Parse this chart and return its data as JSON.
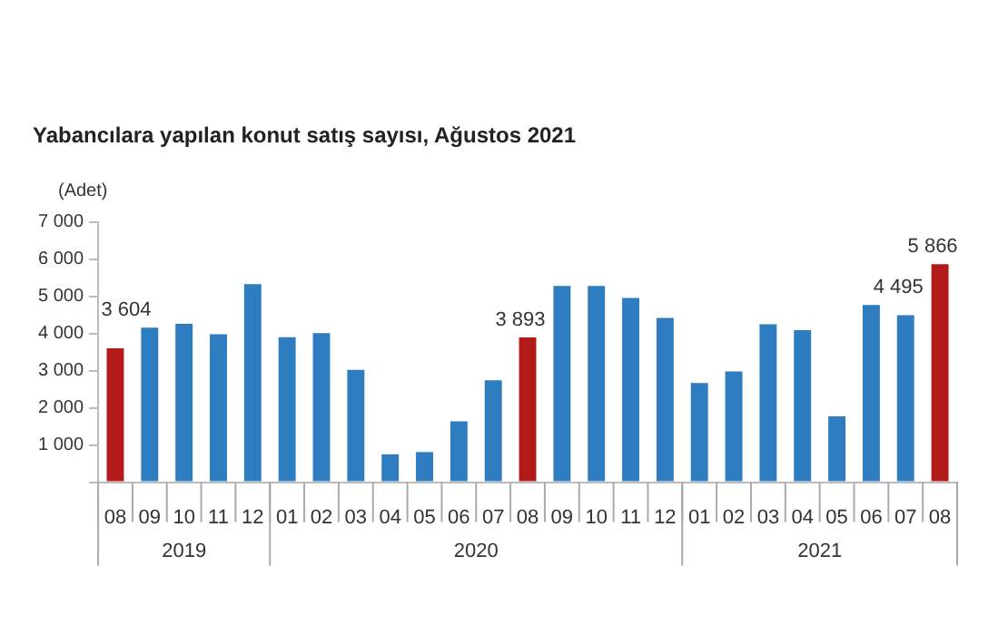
{
  "chart_data": {
    "type": "bar",
    "title": "Yabancılara yapılan konut satış sayısı, Ağustos 2021",
    "categories": [
      "08",
      "09",
      "10",
      "11",
      "12",
      "01",
      "02",
      "03",
      "04",
      "05",
      "06",
      "07",
      "08",
      "09",
      "10",
      "11",
      "12",
      "01",
      "02",
      "03",
      "04",
      "05",
      "06",
      "07",
      "08"
    ],
    "values": [
      3604,
      4160,
      4260,
      3980,
      5330,
      3900,
      4010,
      3020,
      750,
      810,
      1640,
      2740,
      3893,
      5280,
      5280,
      4960,
      4420,
      2670,
      2980,
      4250,
      4090,
      1770,
      4770,
      4495,
      5866
    ],
    "colors": [
      "#b21a1a",
      "#2e7dc1",
      "#2e7dc1",
      "#2e7dc1",
      "#2e7dc1",
      "#2e7dc1",
      "#2e7dc1",
      "#2e7dc1",
      "#2e7dc1",
      "#2e7dc1",
      "#2e7dc1",
      "#2e7dc1",
      "#b21a1a",
      "#2e7dc1",
      "#2e7dc1",
      "#2e7dc1",
      "#2e7dc1",
      "#2e7dc1",
      "#2e7dc1",
      "#2e7dc1",
      "#2e7dc1",
      "#2e7dc1",
      "#2e7dc1",
      "#2e7dc1",
      "#b21a1a"
    ],
    "value_labels": [
      "3 604",
      null,
      null,
      null,
      null,
      null,
      null,
      null,
      null,
      null,
      null,
      null,
      "3 893",
      null,
      null,
      null,
      null,
      null,
      null,
      null,
      null,
      null,
      null,
      "4 495",
      "5 866"
    ],
    "ylabel": "(Adet)",
    "annotations": [
      "2019",
      "2020",
      "2021"
    ],
    "ylim": [
      0,
      7000
    ],
    "yticks": [
      {
        "value": 0,
        "label": null
      },
      {
        "value": 1000,
        "label": "1 000"
      },
      {
        "value": 2000,
        "label": "2 000"
      },
      {
        "value": 3000,
        "label": "3 000"
      },
      {
        "value": 4000,
        "label": "4 000"
      },
      {
        "value": 5000,
        "label": "5 000"
      },
      {
        "value": 6000,
        "label": "6 000"
      },
      {
        "value": 7000,
        "label": "7 000"
      }
    ],
    "grid": false,
    "legend": false
  }
}
